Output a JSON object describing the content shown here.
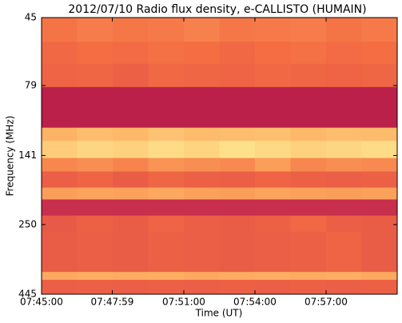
{
  "chart_data": {
    "type": "heatmap",
    "title": "2012/07/10  Radio flux density, e-CALLISTO (HUMAIN)",
    "x_label": "Time (UT)",
    "y_label": "Frequency (MHz)",
    "y_scale": "log",
    "ylim": [
      445,
      45
    ],
    "yticks": [
      45,
      79,
      141,
      250,
      445
    ],
    "xlim": [
      "07:45:00",
      "08:00:00"
    ],
    "xticks": [
      "07:45:00",
      "07:47:59",
      "07:51:00",
      "07:54:00",
      "07:57:00"
    ],
    "x_edges": [
      "07:45:00",
      "07:46:30",
      "07:48:00",
      "07:49:30",
      "07:51:00",
      "07:52:30",
      "07:54:00",
      "07:55:30",
      "07:57:00",
      "07:58:30",
      "08:00:00"
    ],
    "colors": [
      "#9e0142",
      "#d53e4f",
      "#f46d43",
      "#fdae61",
      "#fee08b",
      "#e6f598"
    ],
    "bands": [
      {
        "low": 45,
        "high": 55,
        "values": [
          0.42,
          0.45,
          0.43,
          0.44,
          0.46,
          0.43,
          0.44,
          0.45,
          0.42,
          0.44
        ]
      },
      {
        "low": 55,
        "high": 66,
        "values": [
          0.38,
          0.4,
          0.39,
          0.41,
          0.4,
          0.38,
          0.4,
          0.41,
          0.39,
          0.4
        ]
      },
      {
        "low": 66,
        "high": 80,
        "values": [
          0.36,
          0.37,
          0.35,
          0.38,
          0.37,
          0.36,
          0.38,
          0.37,
          0.36,
          0.37
        ]
      },
      {
        "low": 80,
        "high": 112,
        "values": [
          0.1,
          0.1,
          0.1,
          0.1,
          0.1,
          0.1,
          0.1,
          0.1,
          0.1,
          0.1
        ]
      },
      {
        "low": 112,
        "high": 125,
        "values": [
          0.62,
          0.66,
          0.64,
          0.68,
          0.65,
          0.66,
          0.67,
          0.64,
          0.66,
          0.65
        ]
      },
      {
        "low": 125,
        "high": 144,
        "values": [
          0.72,
          0.76,
          0.74,
          0.78,
          0.75,
          0.8,
          0.77,
          0.74,
          0.76,
          0.78
        ]
      },
      {
        "low": 144,
        "high": 161,
        "values": [
          0.48,
          0.5,
          0.47,
          0.52,
          0.5,
          0.49,
          0.55,
          0.48,
          0.5,
          0.49
        ]
      },
      {
        "low": 161,
        "high": 184,
        "values": [
          0.34,
          0.36,
          0.33,
          0.37,
          0.35,
          0.34,
          0.36,
          0.35,
          0.34,
          0.35
        ]
      },
      {
        "low": 184,
        "high": 203,
        "values": [
          0.55,
          0.57,
          0.56,
          0.58,
          0.56,
          0.55,
          0.57,
          0.56,
          0.55,
          0.56
        ]
      },
      {
        "low": 203,
        "high": 232,
        "values": [
          0.15,
          0.15,
          0.15,
          0.15,
          0.15,
          0.15,
          0.15,
          0.15,
          0.15,
          0.15
        ]
      },
      {
        "low": 232,
        "high": 265,
        "values": [
          0.32,
          0.35,
          0.33,
          0.36,
          0.34,
          0.33,
          0.35,
          0.38,
          0.34,
          0.33
        ]
      },
      {
        "low": 265,
        "high": 370,
        "values": [
          0.33,
          0.34,
          0.33,
          0.35,
          0.34,
          0.33,
          0.34,
          0.35,
          0.36,
          0.33
        ]
      },
      {
        "low": 370,
        "high": 395,
        "values": [
          0.58,
          0.6,
          0.59,
          0.6,
          0.58,
          0.59,
          0.6,
          0.59,
          0.6,
          0.58
        ]
      },
      {
        "low": 395,
        "high": 445,
        "values": [
          0.34,
          0.35,
          0.34,
          0.35,
          0.34,
          0.35,
          0.34,
          0.35,
          0.34,
          0.35
        ]
      }
    ]
  }
}
